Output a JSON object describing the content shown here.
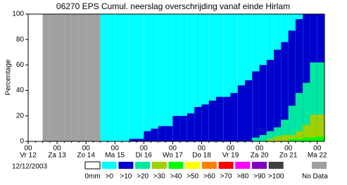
{
  "chart_data": {
    "type": "bar",
    "title": "06270 EPS Cumul. neerslag overschrijding vanaf einde Hirlam",
    "y_label": "Percentage",
    "date": "12/12/2003",
    "hour_label": "00",
    "ylim": [
      0,
      100
    ],
    "yticks": [
      0,
      20,
      40,
      60,
      80,
      100
    ],
    "categories": [
      "Vr 12",
      null,
      null,
      null,
      "Za 13",
      null,
      null,
      null,
      "Zo 14",
      null,
      null,
      null,
      "Ma 15",
      null,
      null,
      null,
      "Di 16",
      null,
      null,
      null,
      "Wo 17",
      null,
      null,
      null,
      "Do 18",
      null,
      null,
      null,
      "Vr 19",
      null,
      null,
      null,
      "Za 20",
      null,
      null,
      null,
      "Zo 21",
      null,
      null,
      null,
      "Ma 22"
    ],
    "series": [
      {
        "name": "0mm",
        "color": "#ffffff",
        "values": [
          null,
          null,
          null,
          null,
          null,
          null,
          null,
          null,
          null,
          null,
          100,
          100,
          100,
          100,
          100,
          100,
          100,
          100,
          100,
          100,
          100,
          100,
          100,
          100,
          100,
          100,
          100,
          100,
          100,
          100,
          100,
          100,
          100,
          100,
          100,
          100,
          100,
          100,
          100,
          100,
          100
        ]
      },
      {
        "name": ">0",
        "color": "#00ffff",
        "values": [
          null,
          null,
          null,
          null,
          null,
          null,
          null,
          null,
          null,
          null,
          100,
          100,
          100,
          100,
          100,
          100,
          100,
          100,
          100,
          100,
          100,
          100,
          100,
          100,
          100,
          100,
          100,
          100,
          100,
          100,
          100,
          100,
          100,
          100,
          100,
          100,
          100,
          100,
          100,
          100,
          100
        ]
      },
      {
        "name": ">10",
        "color": "#0000cc",
        "values": [
          null,
          null,
          null,
          null,
          null,
          null,
          null,
          null,
          null,
          null,
          0,
          0,
          0,
          0,
          2,
          2,
          8,
          10,
          12,
          12,
          20,
          20,
          22,
          27,
          29,
          32,
          35,
          35,
          38,
          44,
          48,
          55,
          60,
          64,
          72,
          78,
          87,
          96,
          100,
          100,
          100
        ]
      },
      {
        "name": ">20",
        "color": "#00e8a0",
        "values": [
          null,
          null,
          null,
          null,
          null,
          null,
          null,
          null,
          null,
          null,
          0,
          0,
          0,
          0,
          0,
          0,
          0,
          0,
          0,
          0,
          0,
          0,
          0,
          0,
          0,
          0,
          0,
          0,
          0,
          0,
          0,
          3,
          5,
          8,
          11,
          17,
          28,
          38,
          46,
          62,
          62
        ]
      },
      {
        "name": ">30",
        "color": "#a0d000",
        "values": [
          null,
          null,
          null,
          null,
          null,
          null,
          null,
          null,
          null,
          null,
          0,
          0,
          0,
          0,
          0,
          0,
          0,
          0,
          0,
          0,
          0,
          0,
          0,
          0,
          0,
          0,
          0,
          0,
          0,
          0,
          0,
          0,
          0,
          2,
          4,
          5,
          5,
          8,
          13,
          21,
          21
        ]
      },
      {
        "name": ">40",
        "color": "#00ff00",
        "values": [
          null,
          null,
          null,
          null,
          null,
          null,
          null,
          null,
          null,
          null,
          0,
          0,
          0,
          0,
          0,
          0,
          0,
          0,
          0,
          0,
          0,
          0,
          0,
          0,
          0,
          0,
          0,
          0,
          0,
          0,
          0,
          0,
          0,
          0,
          0,
          0,
          2,
          2,
          3,
          3,
          4
        ]
      },
      {
        "name": ">50",
        "color": "#ffff00",
        "values": [
          null,
          null,
          null,
          null,
          null,
          null,
          null,
          null,
          null,
          null,
          0,
          0,
          0,
          0,
          0,
          0,
          0,
          0,
          0,
          0,
          0,
          0,
          0,
          0,
          0,
          0,
          0,
          0,
          0,
          0,
          0,
          0,
          0,
          0,
          0,
          0,
          0,
          0,
          0,
          0,
          0
        ]
      },
      {
        "name": ">60",
        "color": "#ff8000",
        "values": [
          null,
          null,
          null,
          null,
          null,
          null,
          null,
          null,
          null,
          null,
          0,
          0,
          0,
          0,
          0,
          0,
          0,
          0,
          0,
          0,
          0,
          0,
          0,
          0,
          0,
          0,
          0,
          0,
          0,
          0,
          0,
          0,
          0,
          0,
          0,
          0,
          0,
          0,
          0,
          0,
          0
        ]
      },
      {
        "name": ">70",
        "color": "#ff0000",
        "values": [
          null,
          null,
          null,
          null,
          null,
          null,
          null,
          null,
          null,
          null,
          0,
          0,
          0,
          0,
          0,
          0,
          0,
          0,
          0,
          0,
          0,
          0,
          0,
          0,
          0,
          0,
          0,
          0,
          0,
          0,
          0,
          0,
          0,
          0,
          0,
          0,
          0,
          0,
          0,
          0,
          0
        ]
      },
      {
        "name": ">80",
        "color": "#ff00ff",
        "values": [
          null,
          null,
          null,
          null,
          null,
          null,
          null,
          null,
          null,
          null,
          0,
          0,
          0,
          0,
          0,
          0,
          0,
          0,
          0,
          0,
          0,
          0,
          0,
          0,
          0,
          0,
          0,
          0,
          0,
          0,
          0,
          0,
          0,
          0,
          0,
          0,
          0,
          0,
          0,
          0,
          0
        ]
      },
      {
        "name": ">90",
        "color": "#8000c0",
        "values": [
          null,
          null,
          null,
          null,
          null,
          null,
          null,
          null,
          null,
          null,
          0,
          0,
          0,
          0,
          0,
          0,
          0,
          0,
          0,
          0,
          0,
          0,
          0,
          0,
          0,
          0,
          0,
          0,
          0,
          0,
          0,
          0,
          0,
          0,
          0,
          0,
          0,
          0,
          0,
          0,
          0
        ]
      },
      {
        "name": ">100",
        "color": "#404040",
        "values": [
          null,
          null,
          null,
          null,
          null,
          null,
          null,
          null,
          null,
          null,
          0,
          0,
          0,
          0,
          0,
          0,
          0,
          0,
          0,
          0,
          0,
          0,
          0,
          0,
          0,
          0,
          0,
          0,
          0,
          0,
          0,
          0,
          0,
          0,
          0,
          0,
          0,
          0,
          0,
          0,
          0
        ]
      },
      {
        "name": "No Data",
        "color": "#a0a0a0",
        "values": [
          null,
          null,
          100,
          100,
          100,
          100,
          100,
          100,
          100,
          100,
          null,
          null,
          null,
          null,
          null,
          null,
          null,
          null,
          null,
          null,
          null,
          null,
          null,
          null,
          null,
          null,
          null,
          null,
          null,
          null,
          null,
          null,
          null,
          null,
          null,
          null,
          null,
          null,
          null,
          null,
          null
        ]
      }
    ]
  }
}
